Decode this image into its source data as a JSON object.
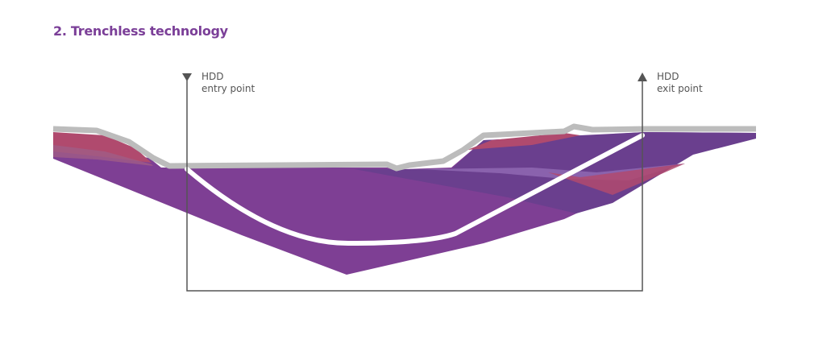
{
  "title": "2. Trenchless technology",
  "entry_point": {
    "line1": "HDD",
    "line2": "entry point"
  },
  "exit_point": {
    "line1": "HDD",
    "line2": "exit point"
  },
  "colors": {
    "title": "#7b3f98",
    "soil_main": "#7e3f94",
    "soil_dark": "#6a3f8e",
    "soil_red": "#b04a6e",
    "soil_lilac": "#8a62ad",
    "ground_surface": "#bcbcbc",
    "bore_path": "#ffffff",
    "marker": "#555555"
  },
  "icons": {
    "entry": "triangle-down-icon",
    "exit": "triangle-up-icon"
  }
}
